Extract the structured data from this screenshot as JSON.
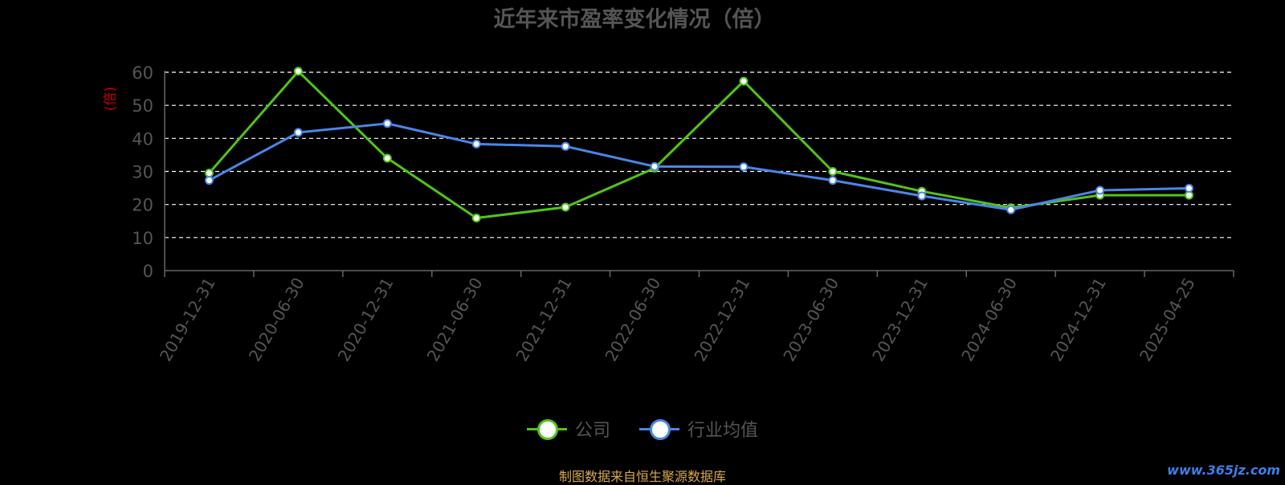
{
  "chart_data": {
    "type": "line",
    "title": "近年来市盈率变化情况（倍）",
    "ylabel": "(倍)",
    "ylim": [
      0,
      60
    ],
    "yticks": [
      0,
      10,
      20,
      30,
      40,
      50,
      60
    ],
    "grid": true,
    "legend_position": "bottom",
    "categories": [
      "2019-12-31",
      "2020-06-30",
      "2020-12-31",
      "2021-06-30",
      "2021-12-31",
      "2022-06-30",
      "2022-12-31",
      "2023-06-30",
      "2023-12-31",
      "2024-06-30",
      "2024-12-31",
      "2025-04-25"
    ],
    "series": [
      {
        "name": "公司",
        "color": "#52c41a",
        "values": [
          29.5,
          60.3,
          34.0,
          15.9,
          19.2,
          31.0,
          57.3,
          30.0,
          24.0,
          19.0,
          22.8,
          22.8
        ]
      },
      {
        "name": "行业均值",
        "color": "#4a86e8",
        "values": [
          27.3,
          41.8,
          44.5,
          38.3,
          37.6,
          31.5,
          31.4,
          27.3,
          22.6,
          18.4,
          24.3,
          24.9
        ]
      }
    ]
  },
  "legend": {
    "company": "公司",
    "industry": "行业均值"
  },
  "footer": {
    "source": "制图数据来自恒生聚源数据库",
    "watermark": "www.365jz.com"
  }
}
